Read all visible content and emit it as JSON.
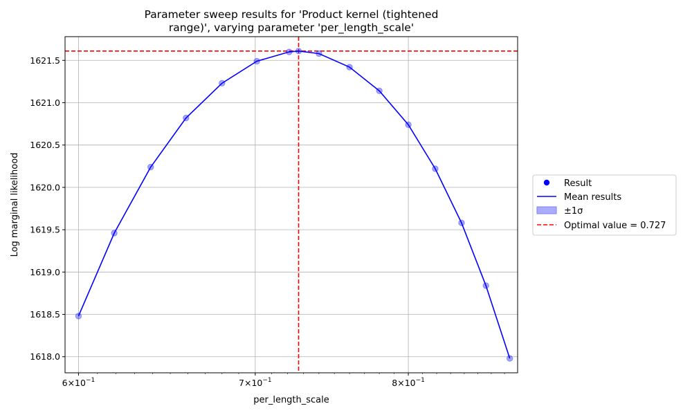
{
  "chart_data": {
    "type": "line",
    "title_lines": [
      "Parameter sweep results for 'Product kernel (tightened",
      "range)', varying parameter 'per_length_scale'"
    ],
    "xlabel": "per_length_scale",
    "ylabel": "Log marginal likelihood",
    "x_scale": "log",
    "xlim": [
      0.593,
      0.88
    ],
    "ylim": [
      1617.81,
      1621.78
    ],
    "grid": true,
    "x_ticks": [
      {
        "value": 0.6,
        "label_base": "6×10",
        "label_exp": "−1"
      },
      {
        "value": 0.7,
        "label_base": "7×10",
        "label_exp": "−1"
      },
      {
        "value": 0.8,
        "label_base": "8×10",
        "label_exp": "−1"
      }
    ],
    "y_ticks": [
      {
        "value": 1618.0,
        "label": "1618.0"
      },
      {
        "value": 1618.5,
        "label": "1618.5"
      },
      {
        "value": 1619.0,
        "label": "1619.0"
      },
      {
        "value": 1619.5,
        "label": "1619.5"
      },
      {
        "value": 1620.0,
        "label": "1620.0"
      },
      {
        "value": 1620.5,
        "label": "1620.5"
      },
      {
        "value": 1621.0,
        "label": "1621.0"
      },
      {
        "value": 1621.5,
        "label": "1621.5"
      }
    ],
    "points": [
      {
        "x": 0.6,
        "y": 1618.48
      },
      {
        "x": 0.619,
        "y": 1619.46
      },
      {
        "x": 0.639,
        "y": 1620.24
      },
      {
        "x": 0.659,
        "y": 1620.82
      },
      {
        "x": 0.68,
        "y": 1621.23
      },
      {
        "x": 0.701,
        "y": 1621.49
      },
      {
        "x": 0.721,
        "y": 1621.6
      },
      {
        "x": 0.727,
        "y": 1621.61
      },
      {
        "x": 0.74,
        "y": 1621.58
      },
      {
        "x": 0.76,
        "y": 1621.42
      },
      {
        "x": 0.78,
        "y": 1621.14
      },
      {
        "x": 0.8,
        "y": 1620.74
      },
      {
        "x": 0.819,
        "y": 1620.22
      },
      {
        "x": 0.838,
        "y": 1619.58
      },
      {
        "x": 0.856,
        "y": 1618.84
      },
      {
        "x": 0.874,
        "y": 1617.98
      }
    ],
    "optimal_x": 0.727,
    "optimal_y": 1621.61,
    "legend_position": "right, outside plot",
    "legend": [
      {
        "key": "result",
        "label": "Result"
      },
      {
        "key": "mean",
        "label": "Mean results"
      },
      {
        "key": "sigma",
        "label": "±1σ"
      },
      {
        "key": "optimal",
        "label": "Optimal value = 0.727"
      }
    ],
    "colors": {
      "line": "#0000ff",
      "marker": "#0000ff",
      "sigma_fill": "#aaaaff",
      "optimal": "#ff0000",
      "grid": "#b0b0b0"
    }
  }
}
